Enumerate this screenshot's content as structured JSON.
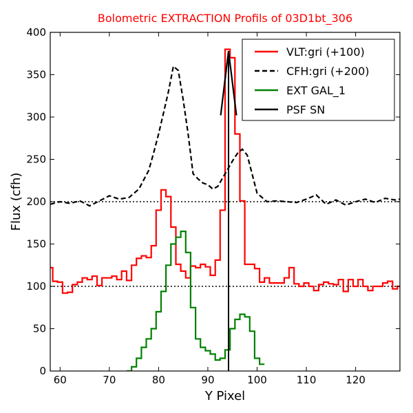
{
  "chart_data": {
    "type": "line",
    "title": "Bolometric EXTRACTION Profils of 03D1bt_306",
    "title_color": "#ff0000",
    "xlabel": "Y Pixel",
    "ylabel": "Flux (cfh)",
    "xlim": [
      58,
      129
    ],
    "ylim": [
      0,
      400
    ],
    "xticks": [
      60,
      70,
      80,
      90,
      100,
      110,
      120
    ],
    "yticks": [
      0,
      50,
      100,
      150,
      200,
      250,
      300,
      350,
      400
    ],
    "grid": false,
    "legend_position": "top-right",
    "reference_lines": [
      {
        "y": 100,
        "style": "dotted",
        "color": "#000000"
      },
      {
        "y": 200,
        "style": "dotted",
        "color": "#000000"
      }
    ],
    "series": [
      {
        "name": "VLT:gri (+100)",
        "color": "#ff0000",
        "style": "steps",
        "x": [
          58,
          59,
          60,
          61,
          62,
          63,
          64,
          65,
          66,
          67,
          68,
          69,
          70,
          71,
          72,
          73,
          74,
          75,
          76,
          77,
          78,
          79,
          80,
          81,
          82,
          83,
          84,
          85,
          86,
          87,
          88,
          89,
          90,
          91,
          92,
          93,
          94,
          95,
          96,
          97,
          98,
          99,
          100,
          101,
          102,
          103,
          104,
          105,
          106,
          107,
          108,
          109,
          110,
          111,
          112,
          113,
          114,
          115,
          116,
          117,
          118,
          119,
          120,
          121,
          122,
          123,
          124,
          125,
          126,
          127,
          128,
          129
        ],
        "y": [
          122,
          106,
          105,
          92,
          93,
          102,
          105,
          110,
          108,
          112,
          101,
          110,
          110,
          112,
          108,
          118,
          107,
          125,
          133,
          136,
          134,
          148,
          190,
          214,
          206,
          170,
          126,
          118,
          110,
          124,
          122,
          126,
          123,
          113,
          131,
          190,
          380,
          370,
          280,
          201,
          126,
          126,
          121,
          105,
          110,
          104,
          104,
          104,
          110,
          122,
          103,
          100,
          104,
          100,
          95,
          102,
          105,
          103,
          102,
          108,
          94,
          108,
          100,
          108,
          100,
          95,
          100,
          100,
          104,
          106,
          97,
          100
        ]
      },
      {
        "name": "CFH:gri (+200)",
        "color": "#000000",
        "style": "dashed",
        "x": [
          58,
          60,
          62,
          64,
          66,
          68,
          70,
          72,
          74,
          76,
          78,
          79,
          80,
          81,
          82,
          83,
          84,
          85,
          86,
          87,
          88,
          89,
          90,
          91,
          92,
          93,
          94,
          95,
          96,
          97,
          98,
          100,
          102,
          104,
          106,
          108,
          110,
          112,
          114,
          116,
          118,
          120,
          122,
          124,
          126,
          128,
          129
        ],
        "y": [
          197,
          200,
          198,
          201,
          195,
          201,
          207,
          203,
          205,
          215,
          237,
          258,
          280,
          305,
          330,
          360,
          355,
          320,
          280,
          233,
          227,
          222,
          220,
          215,
          218,
          228,
          238,
          248,
          257,
          262,
          255,
          210,
          200,
          201,
          200,
          199,
          203,
          208,
          197,
          202,
          196,
          200,
          203,
          199,
          204,
          202,
          203
        ]
      },
      {
        "name": "EXT GAL_1",
        "color": "#008000",
        "style": "steps",
        "x": [
          74,
          75,
          76,
          77,
          78,
          79,
          80,
          81,
          82,
          83,
          84,
          85,
          86,
          87,
          88,
          89,
          90,
          91,
          92,
          93,
          94,
          95,
          96,
          97,
          98,
          99,
          100,
          101
        ],
        "y": [
          0,
          5,
          15,
          28,
          38,
          50,
          70,
          94,
          125,
          150,
          158,
          165,
          140,
          75,
          38,
          28,
          24,
          20,
          13,
          15,
          25,
          50,
          61,
          67,
          64,
          47,
          15,
          8
        ]
      },
      {
        "name": "PSF SN",
        "color": "#000000",
        "style": "solid",
        "x": [
          92.6,
          94.2,
          95.8
        ],
        "y": [
          302,
          378,
          302
        ]
      }
    ],
    "vertical_lines": [
      {
        "x": 94.2,
        "y0": 0,
        "y1": 378,
        "color": "#000000"
      }
    ]
  }
}
